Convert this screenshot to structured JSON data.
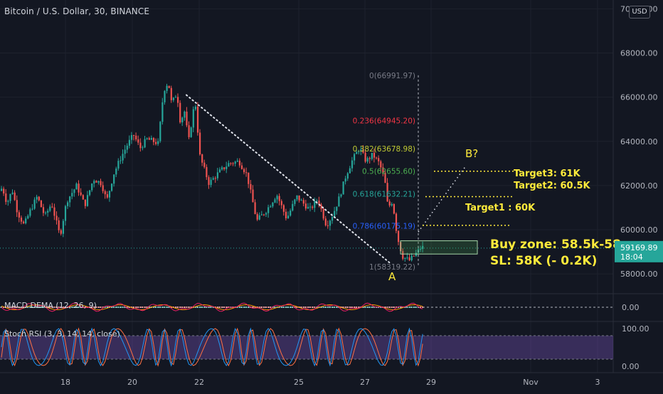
{
  "header": {
    "title": "Bitcoin / U.S. Dollar, 30, BINANCE",
    "currency": "USD"
  },
  "price_axis": {
    "ticks": [
      "70000.00",
      "68000.00",
      "66000.00",
      "64000.00",
      "62000.00",
      "60000.00",
      "58000.00"
    ],
    "current_price": "59169.89",
    "countdown": "18:04"
  },
  "time_axis": {
    "ticks": [
      "18",
      "20",
      "22",
      "25",
      "27",
      "29",
      "Nov",
      "3"
    ]
  },
  "fib": {
    "levels": [
      {
        "label": "0(66991.97)",
        "price": 66991.97,
        "color": "#787b86"
      },
      {
        "label": "0.236(64945.20)",
        "price": 64945.2,
        "color": "#f23645"
      },
      {
        "label": "0.382(63678.98)",
        "price": 63678.98,
        "color": "#c0ca33"
      },
      {
        "label": "0.5(62655.60)",
        "price": 62655.6,
        "color": "#4caf50"
      },
      {
        "label": "0.618(61632.21)",
        "price": 61632.21,
        "color": "#26a69a"
      },
      {
        "label": "0.786(60175.19)",
        "price": 60175.19,
        "color": "#2962ff"
      },
      {
        "label": "1(58319.22)",
        "price": 58319.22,
        "color": "#787b86"
      }
    ]
  },
  "annotations": {
    "point_b": "B?",
    "point_a": "A",
    "target3": "Target3:  61K",
    "target2": "Target2:  60.5K",
    "target1": "Target1  :  60K",
    "buy_zone": "Buy zone:  58.5k-58",
    "stop_loss": "SL:   58K  (- 0.2K)",
    "annotation_color": "#ffeb3b"
  },
  "indicators": {
    "macd": {
      "label": "MACD DEMA (12, 26, 9)",
      "ticks": [
        "0.00"
      ]
    },
    "stoch_rsi": {
      "label": "Stoch RSI (3, 3, 14, 14, close)",
      "ticks": [
        "100.00",
        "0.00"
      ]
    }
  },
  "colors": {
    "up": "#26a69a",
    "down": "#ef5350",
    "background": "#131722",
    "price_tag": "#26a69a"
  },
  "chart_data": {
    "type": "candlestick",
    "title": "Bitcoin / U.S. Dollar, 30, BINANCE",
    "x_ticks": [
      "18",
      "20",
      "22",
      "25",
      "27",
      "29",
      "Nov",
      "3"
    ],
    "y_ticks": [
      58000,
      60000,
      62000,
      64000,
      66000,
      68000,
      70000
    ],
    "ylim": [
      57200,
      70400
    ],
    "last_price": 59169.89,
    "path": [
      {
        "t": 0,
        "p": 61700
      },
      {
        "t": 0.07,
        "p": 61900
      },
      {
        "t": 0.14,
        "p": 61200
      },
      {
        "t": 0.22,
        "p": 61800
      },
      {
        "t": 0.3,
        "p": 60800
      },
      {
        "t": 0.4,
        "p": 60200
      },
      {
        "t": 0.5,
        "p": 60900
      },
      {
        "t": 0.6,
        "p": 61500
      },
      {
        "t": 0.72,
        "p": 60600
      },
      {
        "t": 0.82,
        "p": 61200
      },
      {
        "t": 0.95,
        "p": 59700
      },
      {
        "t": 1.05,
        "p": 61300
      },
      {
        "t": 1.2,
        "p": 62000
      },
      {
        "t": 1.32,
        "p": 61100
      },
      {
        "t": 1.45,
        "p": 62300
      },
      {
        "t": 1.57,
        "p": 62100
      },
      {
        "t": 1.65,
        "p": 61300
      },
      {
        "t": 1.75,
        "p": 62500
      },
      {
        "t": 1.85,
        "p": 63200
      },
      {
        "t": 1.95,
        "p": 63800
      },
      {
        "t": 2.05,
        "p": 64300
      },
      {
        "t": 2.15,
        "p": 63700
      },
      {
        "t": 2.25,
        "p": 64100
      },
      {
        "t": 2.35,
        "p": 64000
      },
      {
        "t": 2.42,
        "p": 63900
      },
      {
        "t": 2.5,
        "p": 66300
      },
      {
        "t": 2.57,
        "p": 66700
      },
      {
        "t": 2.62,
        "p": 65700
      },
      {
        "t": 2.7,
        "p": 66200
      },
      {
        "t": 2.75,
        "p": 64900
      },
      {
        "t": 2.82,
        "p": 65400
      },
      {
        "t": 2.87,
        "p": 63900
      },
      {
        "t": 2.97,
        "p": 65900
      },
      {
        "t": 3.03,
        "p": 63300
      },
      {
        "t": 3.12,
        "p": 62100
      },
      {
        "t": 3.22,
        "p": 62600
      },
      {
        "t": 3.32,
        "p": 63000
      },
      {
        "t": 3.42,
        "p": 63100
      },
      {
        "t": 3.5,
        "p": 62500
      },
      {
        "t": 3.6,
        "p": 60400
      },
      {
        "t": 3.7,
        "p": 60900
      },
      {
        "t": 3.8,
        "p": 61600
      },
      {
        "t": 3.9,
        "p": 60500
      },
      {
        "t": 4.0,
        "p": 61500
      },
      {
        "t": 4.1,
        "p": 61200
      },
      {
        "t": 4.2,
        "p": 60900
      },
      {
        "t": 4.32,
        "p": 61400
      },
      {
        "t": 4.45,
        "p": 60200
      },
      {
        "t": 4.55,
        "p": 60700
      },
      {
        "t": 4.65,
        "p": 61500
      },
      {
        "t": 4.75,
        "p": 62500
      },
      {
        "t": 4.85,
        "p": 63200
      },
      {
        "t": 4.95,
        "p": 63700
      },
      {
        "t": 5.05,
        "p": 63100
      },
      {
        "t": 5.15,
        "p": 63400
      },
      {
        "t": 5.25,
        "p": 63000
      },
      {
        "t": 5.33,
        "p": 62300
      },
      {
        "t": 5.38,
        "p": 61000
      },
      {
        "t": 5.45,
        "p": 61300
      },
      {
        "t": 5.52,
        "p": 59700
      },
      {
        "t": 5.6,
        "p": 58800
      },
      {
        "t": 5.7,
        "p": 58600
      },
      {
        "t": 5.8,
        "p": 58900
      },
      {
        "t": 5.88,
        "p": 59200
      }
    ]
  }
}
